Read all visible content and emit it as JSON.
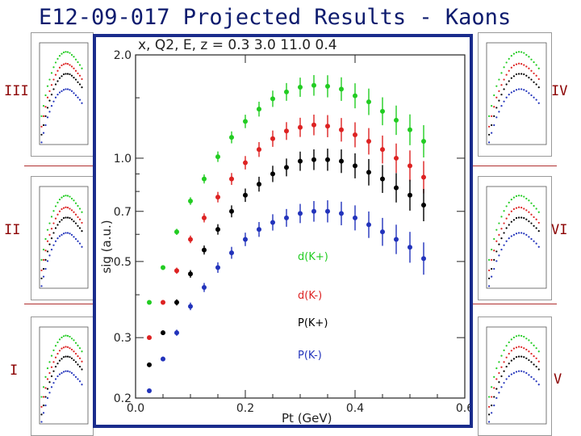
{
  "slide": {
    "title": "E12-09-017 Projected Results - Kaons",
    "region_labels": [
      "III",
      "IV",
      "II",
      "VI",
      "I",
      "V"
    ]
  },
  "chart_data": {
    "type": "scatter",
    "title": "x,  Q2,  E,  z  =    0.3    3.0   11.0    0.4",
    "xlabel": "Pt (GeV)",
    "ylabel": "sig (a.u.)",
    "xlim": [
      0.0,
      0.6
    ],
    "ylim": [
      0.2,
      2.0
    ],
    "yscale": "log",
    "xticks": [
      0.0,
      0.2,
      0.4,
      0.6
    ],
    "xtick_labels": [
      "0.0",
      "0.2",
      "0.4",
      "0.6"
    ],
    "yticks": [
      0.2,
      0.3,
      0.5,
      0.7,
      1.0,
      2.0
    ],
    "ytick_labels": [
      "0.2",
      "0.3",
      "0.5",
      "0.7",
      "1.0",
      "2.0"
    ],
    "x": [
      0.025,
      0.05,
      0.075,
      0.1,
      0.125,
      0.15,
      0.175,
      0.2,
      0.225,
      0.25,
      0.275,
      0.3,
      0.325,
      0.35,
      0.375,
      0.4,
      0.425,
      0.45,
      0.475,
      0.5,
      0.525
    ],
    "series": [
      {
        "name": "d(K+)",
        "color": "#22cc22",
        "values": [
          0.38,
          0.48,
          0.61,
          0.75,
          0.87,
          1.01,
          1.15,
          1.28,
          1.39,
          1.49,
          1.56,
          1.61,
          1.63,
          1.62,
          1.59,
          1.52,
          1.46,
          1.37,
          1.29,
          1.21,
          1.12
        ]
      },
      {
        "name": "d(K-)",
        "color": "#dd2222",
        "values": [
          0.3,
          0.38,
          0.47,
          0.58,
          0.67,
          0.77,
          0.87,
          0.97,
          1.06,
          1.14,
          1.2,
          1.23,
          1.25,
          1.24,
          1.21,
          1.17,
          1.12,
          1.06,
          1.0,
          0.95,
          0.88
        ]
      },
      {
        "name": "P(K+)",
        "color": "#000000",
        "values": [
          0.25,
          0.31,
          0.38,
          0.46,
          0.54,
          0.62,
          0.7,
          0.78,
          0.84,
          0.9,
          0.94,
          0.98,
          0.99,
          0.99,
          0.98,
          0.95,
          0.91,
          0.87,
          0.82,
          0.78,
          0.73
        ]
      },
      {
        "name": "P(K-)",
        "color": "#2233bb",
        "values": [
          0.21,
          0.26,
          0.31,
          0.37,
          0.42,
          0.48,
          0.53,
          0.58,
          0.62,
          0.65,
          0.67,
          0.69,
          0.7,
          0.7,
          0.69,
          0.67,
          0.64,
          0.61,
          0.58,
          0.55,
          0.51
        ]
      }
    ]
  }
}
